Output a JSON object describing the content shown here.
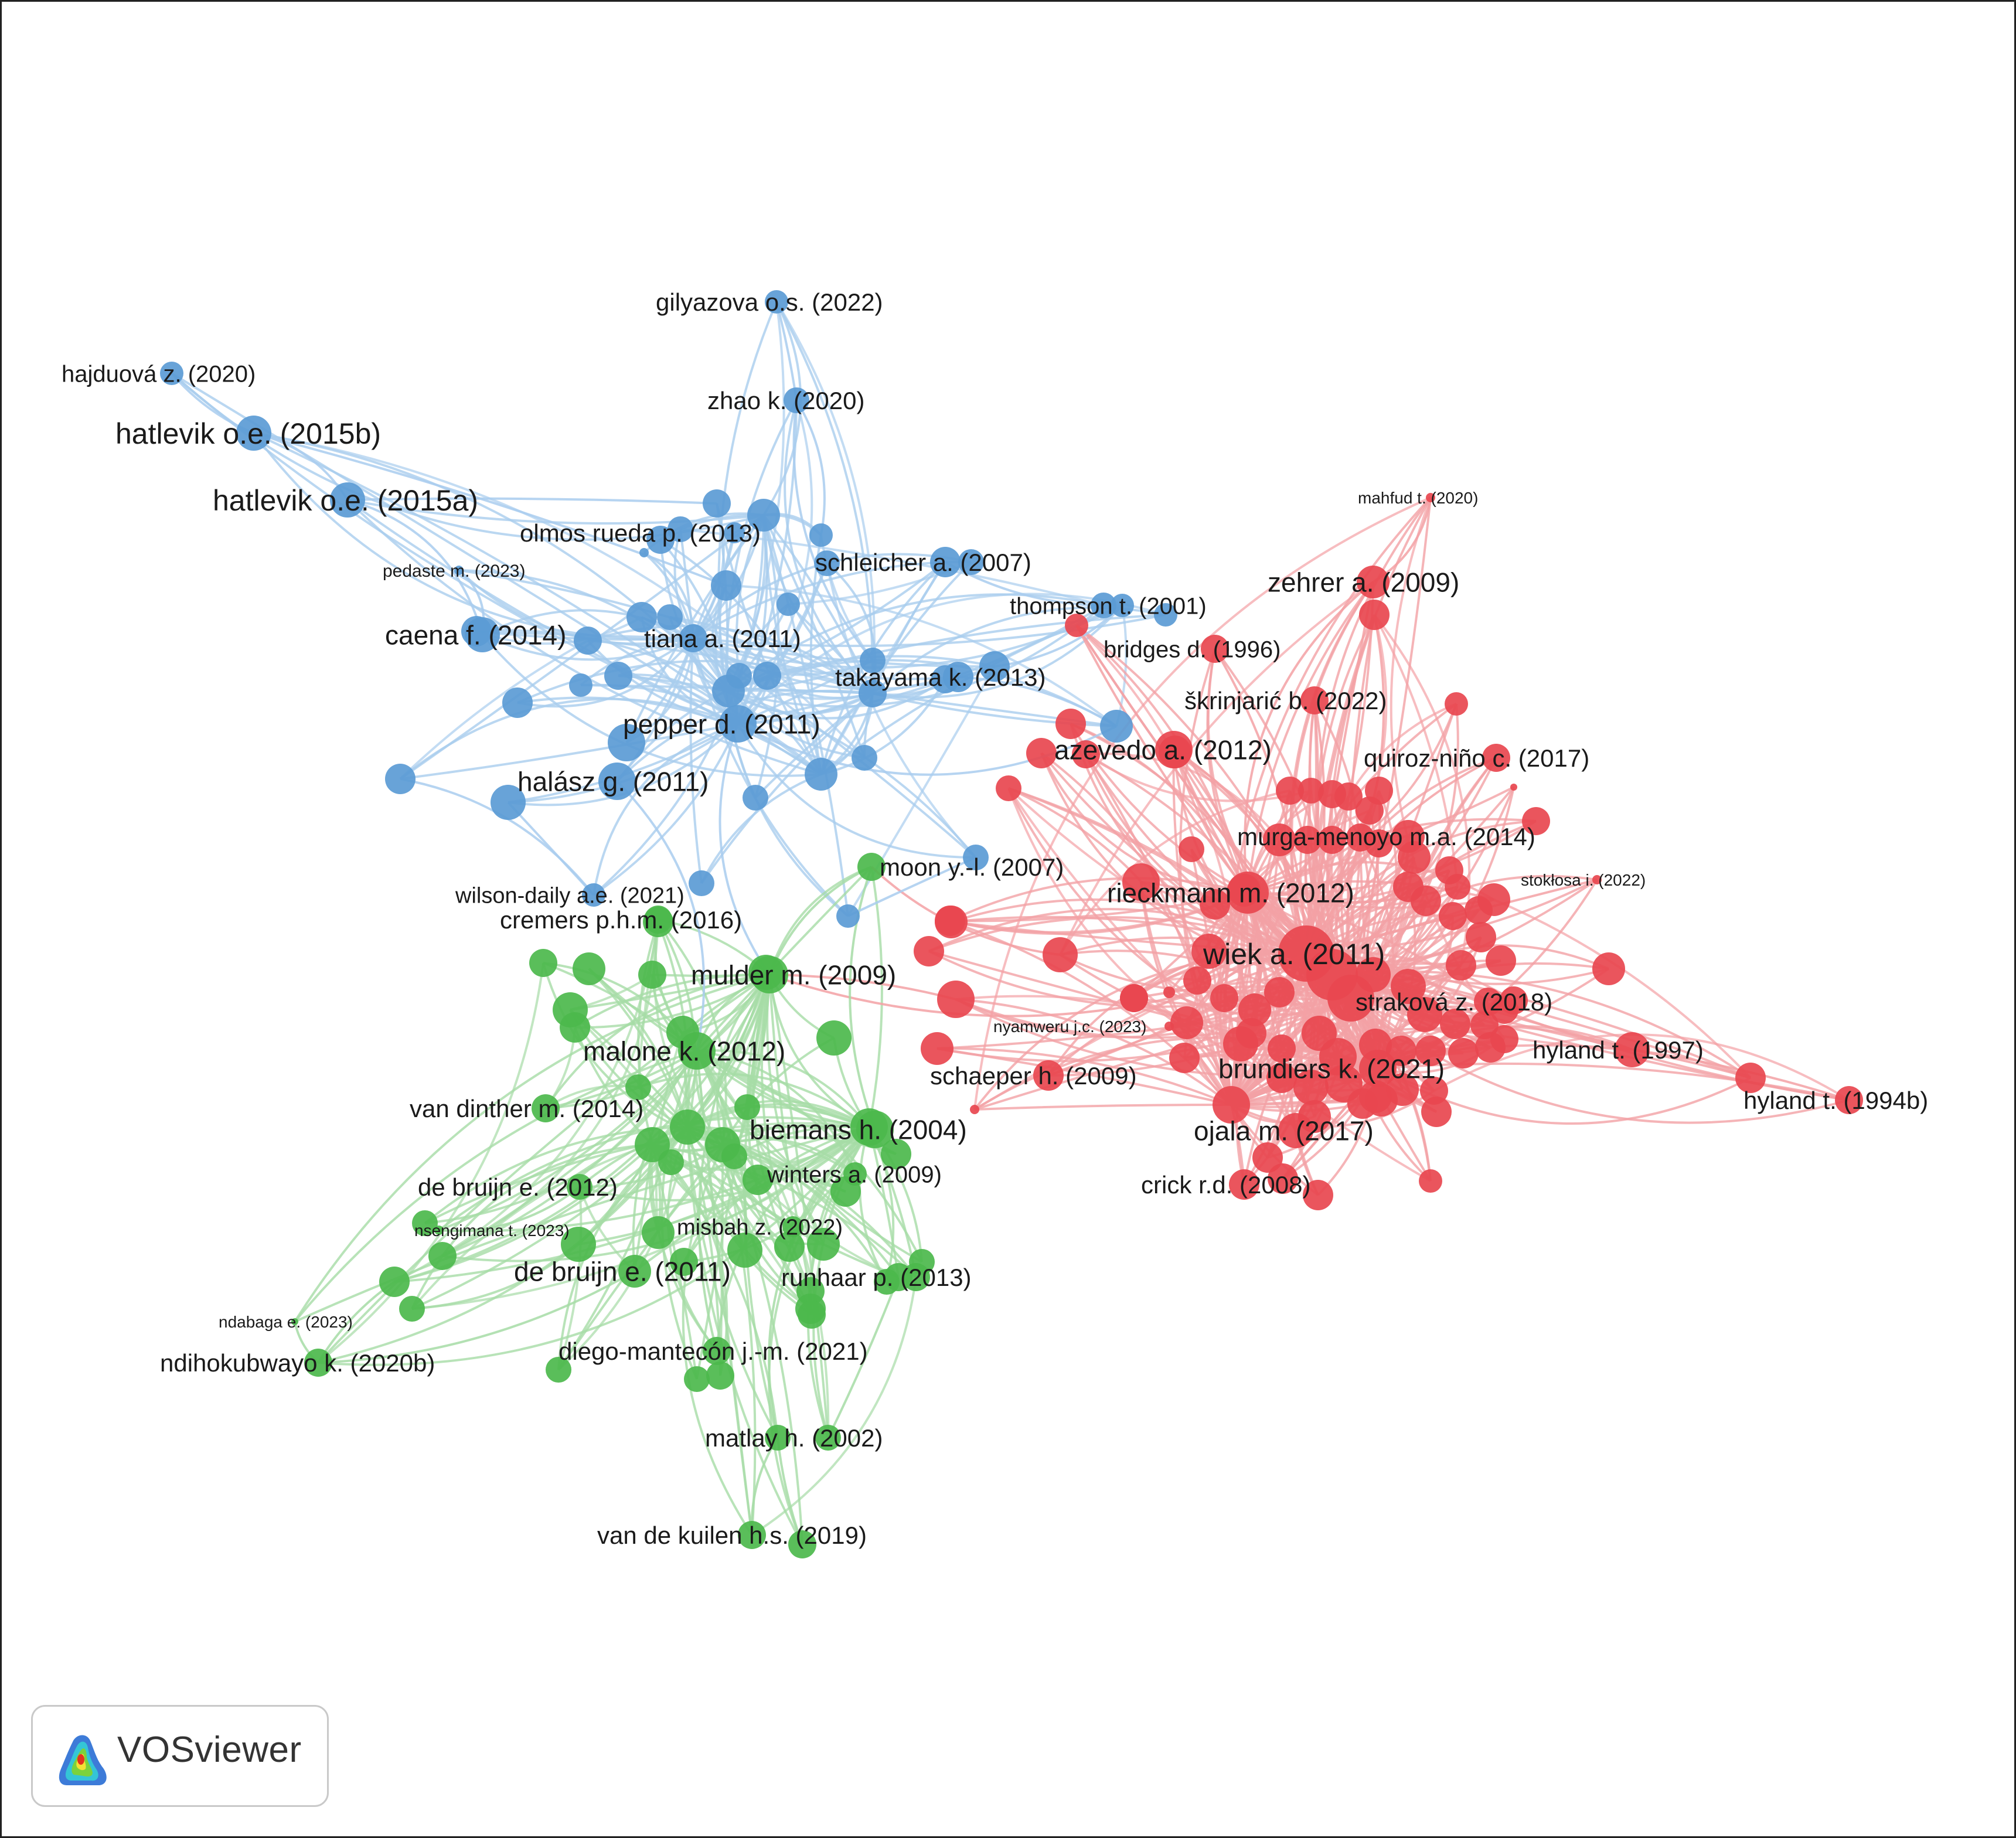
{
  "app": {
    "brand": "VOSviewer"
  },
  "colors": {
    "blue": "#5b9bd5",
    "green": "#4cb84c",
    "red": "#e8474f",
    "edge_blue": "#a9cdee",
    "edge_green": "#a6dca6",
    "edge_red": "#f3a1a5"
  },
  "labels": [
    {
      "id": "gilyazova",
      "text": "gilyazova o.s. (2022)",
      "cluster": "blue"
    },
    {
      "id": "hajduova",
      "text": "hajduová z. (2020)",
      "cluster": "blue"
    },
    {
      "id": "hatlevik_b",
      "text": "hatlevik o.e. (2015b)",
      "cluster": "blue"
    },
    {
      "id": "zhao",
      "text": "zhao k. (2020)",
      "cluster": "blue"
    },
    {
      "id": "hatlevik_a",
      "text": "hatlevik o.e. (2015a)",
      "cluster": "blue"
    },
    {
      "id": "olmos",
      "text": "olmos rueda p. (2013)",
      "cluster": "blue"
    },
    {
      "id": "schleicher",
      "text": "schleicher a. (2007)",
      "cluster": "blue"
    },
    {
      "id": "pedaste",
      "text": "pedaste m. (2023)",
      "cluster": "blue"
    },
    {
      "id": "caena",
      "text": "caena f. (2014)",
      "cluster": "blue"
    },
    {
      "id": "tiana",
      "text": "tiana a. (2011)",
      "cluster": "blue"
    },
    {
      "id": "thompson",
      "text": "thompson t. (2001)",
      "cluster": "blue"
    },
    {
      "id": "takayama",
      "text": "takayama k. (2013)",
      "cluster": "blue"
    },
    {
      "id": "pepper",
      "text": "pepper d. (2011)",
      "cluster": "blue"
    },
    {
      "id": "halasz",
      "text": "halász g. (2011)",
      "cluster": "blue"
    },
    {
      "id": "wilson",
      "text": "wilson-daily a.e. (2021)",
      "cluster": "blue"
    },
    {
      "id": "mahfud",
      "text": "mahfud t. (2020)",
      "cluster": "red"
    },
    {
      "id": "zehrer",
      "text": "zehrer a. (2009)",
      "cluster": "red"
    },
    {
      "id": "bridges",
      "text": "bridges d. (1996)",
      "cluster": "red"
    },
    {
      "id": "skrinjaric",
      "text": "škrinjarić b. (2022)",
      "cluster": "red"
    },
    {
      "id": "azevedo",
      "text": "azevedo a. (2012)",
      "cluster": "red"
    },
    {
      "id": "quiroz",
      "text": "quiroz-niño c. (2017)",
      "cluster": "red"
    },
    {
      "id": "murga",
      "text": "murga-menoyo m.a. (2014)",
      "cluster": "red"
    },
    {
      "id": "stoklosa",
      "text": "stokłosa i. (2022)",
      "cluster": "red"
    },
    {
      "id": "rieckmann",
      "text": "rieckmann m. (2012)",
      "cluster": "red"
    },
    {
      "id": "wiek",
      "text": "wiek a. (2011)",
      "cluster": "red"
    },
    {
      "id": "strakova",
      "text": "straková z. (2018)",
      "cluster": "red"
    },
    {
      "id": "nyamweru",
      "text": "nyamweru j.c. (2023)",
      "cluster": "red"
    },
    {
      "id": "hyland97",
      "text": "hyland t. (1997)",
      "cluster": "red"
    },
    {
      "id": "schaeper",
      "text": "schaeper h. (2009)",
      "cluster": "red"
    },
    {
      "id": "brundiers",
      "text": "brundiers k. (2021)",
      "cluster": "red"
    },
    {
      "id": "hyland94",
      "text": "hyland t. (1994b)",
      "cluster": "red"
    },
    {
      "id": "ojala",
      "text": "ojala m. (2017)",
      "cluster": "red"
    },
    {
      "id": "crick",
      "text": "crick r.d. (2008)",
      "cluster": "red"
    },
    {
      "id": "moon",
      "text": "moon y.-l. (2007)",
      "cluster": "green"
    },
    {
      "id": "cremers",
      "text": "cremers p.h.m. (2016)",
      "cluster": "green"
    },
    {
      "id": "mulder",
      "text": "mulder m. (2009)",
      "cluster": "green"
    },
    {
      "id": "malone",
      "text": "malone k. (2012)",
      "cluster": "green"
    },
    {
      "id": "vandinther",
      "text": "van dinther m. (2014)",
      "cluster": "green"
    },
    {
      "id": "biemans",
      "text": "biemans h. (2004)",
      "cluster": "green"
    },
    {
      "id": "winters",
      "text": "winters a. (2009)",
      "cluster": "green"
    },
    {
      "id": "debruijn12",
      "text": "de bruijn e. (2012)",
      "cluster": "green"
    },
    {
      "id": "misbah",
      "text": "misbah z. (2022)",
      "cluster": "green"
    },
    {
      "id": "nsengimana",
      "text": "nsengimana t. (2023)",
      "cluster": "green"
    },
    {
      "id": "debruijn11",
      "text": "de bruijn e. (2011)",
      "cluster": "green"
    },
    {
      "id": "runhaar",
      "text": "runhaar p. (2013)",
      "cluster": "green"
    },
    {
      "id": "ndabaga",
      "text": "ndabaga e. (2023)",
      "cluster": "green"
    },
    {
      "id": "ndihokubwayo",
      "text": "ndihokubwayo k. (2020b)",
      "cluster": "green"
    },
    {
      "id": "diego",
      "text": "diego-mantecón j.-m. (2021)",
      "cluster": "green"
    },
    {
      "id": "matlay",
      "text": "matlay h. (2002)",
      "cluster": "green"
    },
    {
      "id": "vandekuilen",
      "text": "van de kuilen h.s. (2019)",
      "cluster": "green"
    }
  ]
}
